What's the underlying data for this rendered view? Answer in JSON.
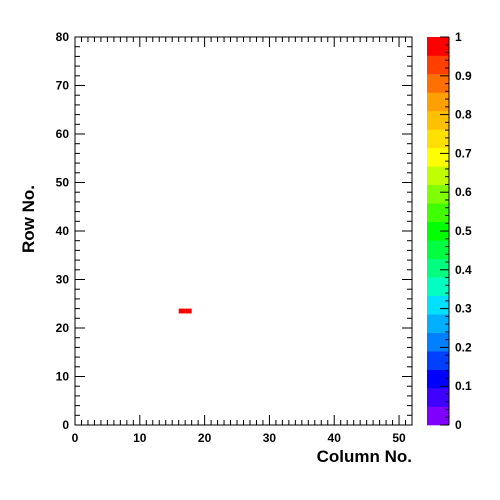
{
  "chart_data": {
    "type": "heatmap",
    "xlabel": "Column No.",
    "ylabel": "Row No.",
    "xlim": [
      0,
      52
    ],
    "ylim": [
      0,
      80
    ],
    "xticks": [
      0,
      10,
      20,
      30,
      40,
      50
    ],
    "yticks": [
      0,
      10,
      20,
      30,
      40,
      50,
      60,
      70,
      80
    ],
    "zlim": [
      0,
      1
    ],
    "zticks": [
      0,
      0.1,
      0.2,
      0.3,
      0.4,
      0.5,
      0.6,
      0.7,
      0.8,
      0.9,
      1
    ],
    "zticklabels": [
      "0",
      "0.1",
      "0.2",
      "0.3",
      "0.4",
      "0.5",
      "0.6",
      "0.7",
      "0.8",
      "0.9",
      "1"
    ],
    "grid": false,
    "cells": [
      {
        "col": 16,
        "row": 23,
        "value": 1
      },
      {
        "col": 17,
        "row": 23,
        "value": 1
      }
    ],
    "palette": [
      "#8000ff",
      "#4000ff",
      "#0000ff",
      "#0040ff",
      "#0080ff",
      "#00b0ff",
      "#00e0ff",
      "#00ffc0",
      "#00ff80",
      "#00ff40",
      "#00ff00",
      "#40ff00",
      "#80ff00",
      "#c0ff00",
      "#ffff00",
      "#ffe000",
      "#ffc000",
      "#ffa000",
      "#ff7000",
      "#ff4000",
      "#ff0000"
    ]
  }
}
